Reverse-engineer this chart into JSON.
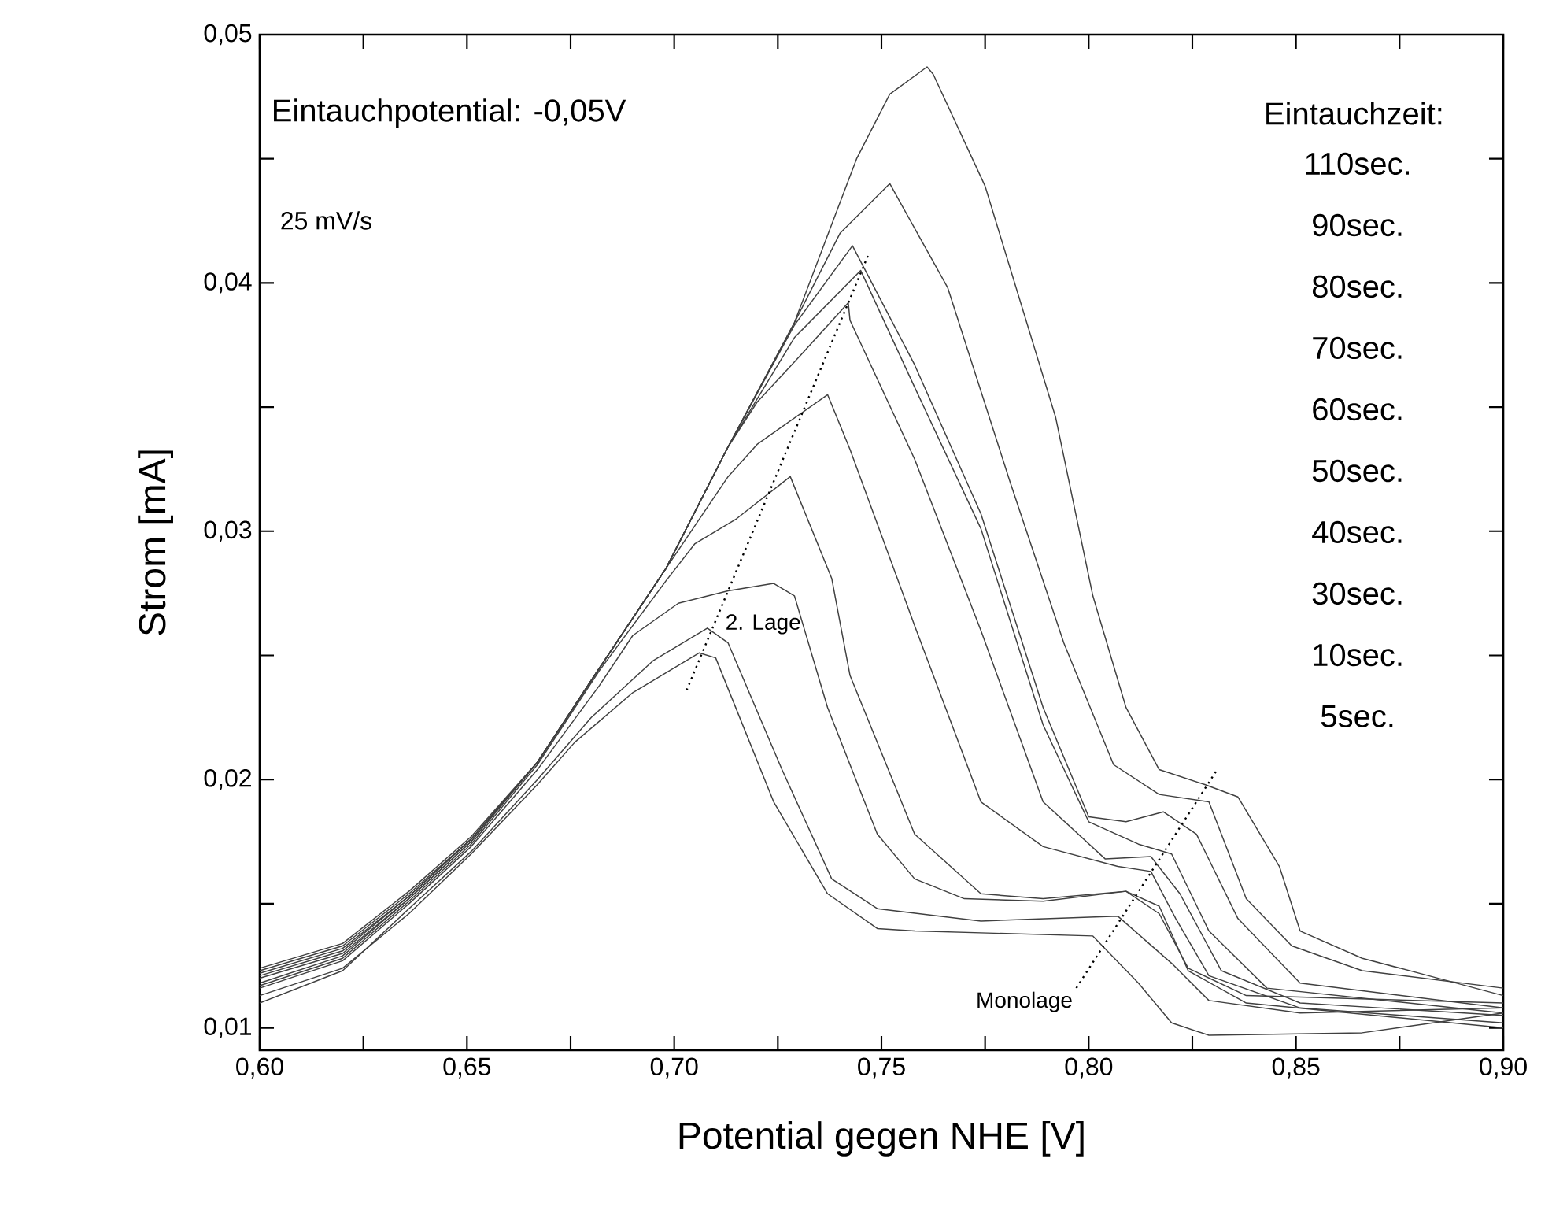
{
  "chart_data": {
    "type": "line",
    "xlabel": "Potential gegen NHE [V]",
    "ylabel": "Strom [mA]",
    "xlim": [
      0.6,
      0.9
    ],
    "ylim": [
      0.0091,
      0.05
    ],
    "xticks": [
      {
        "value": 0.6,
        "label": "0,60"
      },
      {
        "value": 0.625,
        "label": null
      },
      {
        "value": 0.65,
        "label": "0,65"
      },
      {
        "value": 0.675,
        "label": null
      },
      {
        "value": 0.7,
        "label": "0,70"
      },
      {
        "value": 0.725,
        "label": null
      },
      {
        "value": 0.75,
        "label": "0,75"
      },
      {
        "value": 0.775,
        "label": null
      },
      {
        "value": 0.8,
        "label": "0,80"
      },
      {
        "value": 0.825,
        "label": null
      },
      {
        "value": 0.85,
        "label": "0,85"
      },
      {
        "value": 0.875,
        "label": null
      },
      {
        "value": 0.9,
        "label": "0,90"
      }
    ],
    "yticks": [
      {
        "value": 0.01,
        "label": "0,01"
      },
      {
        "value": 0.015,
        "label": null
      },
      {
        "value": 0.02,
        "label": "0,02"
      },
      {
        "value": 0.025,
        "label": null
      },
      {
        "value": 0.03,
        "label": "0,03"
      },
      {
        "value": 0.035,
        "label": null
      },
      {
        "value": 0.04,
        "label": "0,04"
      },
      {
        "value": 0.045,
        "label": null
      },
      {
        "value": 0.05,
        "label": "0,05"
      }
    ],
    "series": [
      {
        "color": "#404040",
        "x": [
          0.6,
          0.62,
          0.636,
          0.651,
          0.667,
          0.676,
          0.69,
          0.706,
          0.71,
          0.724,
          0.737,
          0.749,
          0.758,
          0.801,
          0.812,
          0.82,
          0.829,
          0.866,
          0.9
        ],
        "values": [
          0.0113,
          0.0124,
          0.0146,
          0.017,
          0.0198,
          0.0215,
          0.0235,
          0.0251,
          0.0249,
          0.0191,
          0.0154,
          0.014,
          0.0139,
          0.0137,
          0.0118,
          0.0102,
          0.0097,
          0.0098,
          0.0106
        ]
      },
      {
        "color": "#404040",
        "x": [
          0.6,
          0.62,
          0.636,
          0.651,
          0.667,
          0.68,
          0.695,
          0.708,
          0.713,
          0.726,
          0.738,
          0.749,
          0.774,
          0.807,
          0.82,
          0.829,
          0.851,
          0.9
        ],
        "values": [
          0.011,
          0.0123,
          0.0148,
          0.0171,
          0.02,
          0.0225,
          0.0248,
          0.0261,
          0.0255,
          0.0204,
          0.016,
          0.0148,
          0.0143,
          0.0145,
          0.0126,
          0.0111,
          0.0106,
          0.0108
        ]
      },
      {
        "color": "#404040",
        "x": [
          0.6,
          0.62,
          0.636,
          0.651,
          0.667,
          0.682,
          0.69,
          0.701,
          0.713,
          0.724,
          0.729,
          0.737,
          0.749,
          0.758,
          0.77,
          0.789,
          0.809,
          0.817,
          0.824,
          0.838,
          0.9
        ],
        "values": [
          0.0116,
          0.0127,
          0.015,
          0.0173,
          0.0204,
          0.0238,
          0.0258,
          0.0271,
          0.0276,
          0.0279,
          0.0274,
          0.0229,
          0.0178,
          0.016,
          0.0152,
          0.0151,
          0.0155,
          0.0146,
          0.0124,
          0.0113,
          0.011
        ]
      },
      {
        "color": "#404040",
        "x": [
          0.6,
          0.62,
          0.636,
          0.651,
          0.667,
          0.682,
          0.698,
          0.705,
          0.715,
          0.728,
          0.738,
          0.7424,
          0.758,
          0.774,
          0.789,
          0.809,
          0.817,
          0.824,
          0.838,
          0.9
        ],
        "values": [
          0.0117,
          0.0128,
          0.0151,
          0.0174,
          0.0206,
          0.0244,
          0.028,
          0.0295,
          0.0305,
          0.0322,
          0.0281,
          0.0242,
          0.0178,
          0.0154,
          0.0152,
          0.0155,
          0.0149,
          0.0123,
          0.011,
          0.01
        ]
      },
      {
        "color": "#404040",
        "x": [
          0.6,
          0.62,
          0.636,
          0.651,
          0.667,
          0.682,
          0.698,
          0.713,
          0.72,
          0.737,
          0.7424,
          0.758,
          0.774,
          0.789,
          0.807,
          0.815,
          0.821,
          0.829,
          0.851,
          0.9
        ],
        "values": [
          0.0118,
          0.0129,
          0.0152,
          0.0175,
          0.0207,
          0.0245,
          0.0285,
          0.0322,
          0.0335,
          0.0355,
          0.0333,
          0.0262,
          0.0191,
          0.0173,
          0.0165,
          0.0163,
          0.0144,
          0.0121,
          0.0108,
          0.0102
        ]
      },
      {
        "color": "#404040",
        "x": [
          0.6,
          0.62,
          0.636,
          0.651,
          0.667,
          0.682,
          0.698,
          0.713,
          0.72,
          0.73,
          0.742,
          0.7424,
          0.758,
          0.774,
          0.789,
          0.804,
          0.815,
          0.822,
          0.832,
          0.851,
          0.9
        ],
        "values": [
          0.012,
          0.013,
          0.0152,
          0.0175,
          0.0207,
          0.0245,
          0.0285,
          0.0334,
          0.0352,
          0.037,
          0.0392,
          0.0385,
          0.0329,
          0.026,
          0.0191,
          0.0168,
          0.0169,
          0.0154,
          0.0123,
          0.011,
          0.0105
        ]
      },
      {
        "color": "#404040",
        "x": [
          0.6,
          0.62,
          0.636,
          0.651,
          0.667,
          0.682,
          0.698,
          0.713,
          0.729,
          0.745,
          0.758,
          0.774,
          0.789,
          0.8,
          0.812,
          0.82,
          0.829,
          0.843,
          0.9
        ],
        "values": [
          0.0121,
          0.0131,
          0.0153,
          0.0176,
          0.0207,
          0.0245,
          0.0285,
          0.0334,
          0.0378,
          0.0405,
          0.0358,
          0.0301,
          0.0222,
          0.0183,
          0.0174,
          0.017,
          0.0139,
          0.0116,
          0.0106
        ]
      },
      {
        "color": "#404040",
        "x": [
          0.6,
          0.62,
          0.636,
          0.651,
          0.667,
          0.682,
          0.698,
          0.713,
          0.729,
          0.743,
          0.758,
          0.774,
          0.789,
          0.8,
          0.809,
          0.818,
          0.826,
          0.836,
          0.851,
          0.9
        ],
        "values": [
          0.0122,
          0.0132,
          0.0153,
          0.0176,
          0.0207,
          0.0245,
          0.0285,
          0.0334,
          0.0383,
          0.0415,
          0.0367,
          0.0307,
          0.0229,
          0.0185,
          0.0183,
          0.0187,
          0.0178,
          0.0144,
          0.0118,
          0.0108
        ]
      },
      {
        "color": "#404040",
        "x": [
          0.6,
          0.62,
          0.636,
          0.651,
          0.667,
          0.682,
          0.698,
          0.713,
          0.729,
          0.74,
          0.752,
          0.766,
          0.781,
          0.794,
          0.806,
          0.817,
          0.829,
          0.838,
          0.849,
          0.866,
          0.9
        ],
        "values": [
          0.0123,
          0.0133,
          0.0154,
          0.0176,
          0.0207,
          0.0245,
          0.0285,
          0.0334,
          0.0384,
          0.042,
          0.044,
          0.0398,
          0.032,
          0.0255,
          0.0206,
          0.0194,
          0.0191,
          0.0152,
          0.0133,
          0.0123,
          0.0116
        ]
      },
      {
        "color": "#404040",
        "x": [
          0.6,
          0.62,
          0.636,
          0.651,
          0.667,
          0.682,
          0.698,
          0.713,
          0.729,
          0.744,
          0.752,
          0.761,
          0.7625,
          0.775,
          0.792,
          0.801,
          0.809,
          0.817,
          0.828,
          0.836,
          0.846,
          0.851,
          0.866,
          0.882,
          0.9
        ],
        "values": [
          0.0124,
          0.0134,
          0.0155,
          0.0177,
          0.0207,
          0.0245,
          0.0285,
          0.0334,
          0.0384,
          0.045,
          0.0476,
          0.0487,
          0.0484,
          0.0439,
          0.0346,
          0.0274,
          0.0229,
          0.0204,
          0.0198,
          0.0193,
          0.0165,
          0.0139,
          0.0128,
          0.0121,
          0.0113
        ]
      },
      {
        "type": "line",
        "line_style": "dotted",
        "color": "#000000",
        "x": [
          0.703,
          0.747
        ],
        "values": [
          0.0236,
          0.0412
        ]
      },
      {
        "type": "line",
        "line_style": "dotted",
        "color": "#000000",
        "x": [
          0.797,
          0.831
        ],
        "values": [
          0.0116,
          0.0204
        ]
      }
    ],
    "annotations": [
      "Eintauchpotential: -0,05V",
      "25 mV/s",
      "Eintauchzeit:",
      "110sec.",
      "90sec.",
      "80sec.",
      "70sec.",
      "60sec.",
      "50sec.",
      "40sec.",
      "30sec.",
      "10sec.",
      "5sec.",
      {
        "text": "2. Lage",
        "x": 0.7115,
        "y": 0.0268
      },
      {
        "text": "Monolage",
        "x": 0.797,
        "y": 0.0116
      }
    ]
  }
}
